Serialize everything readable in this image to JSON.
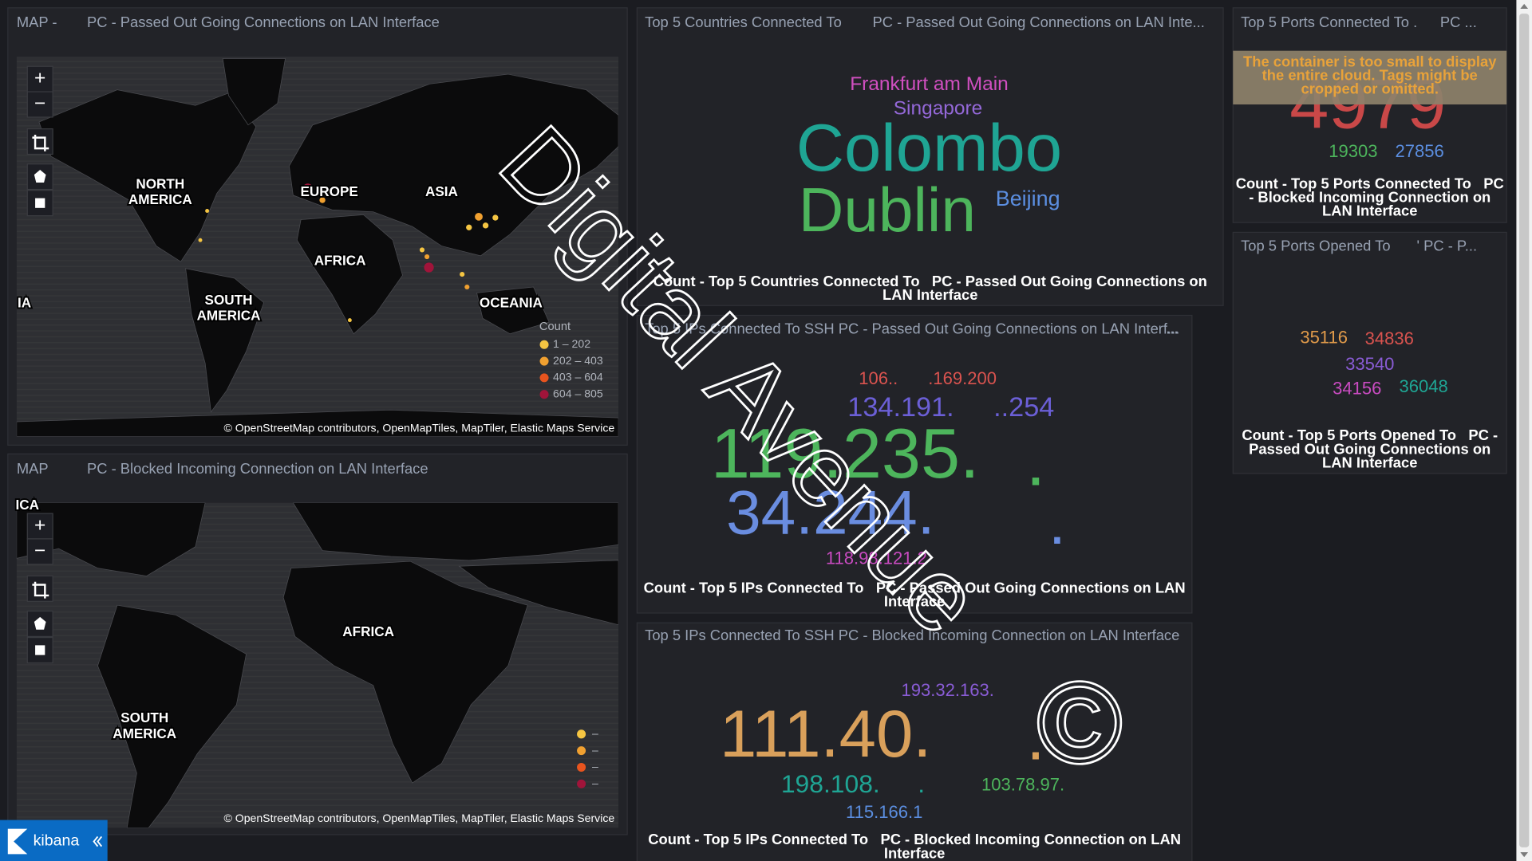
{
  "map_passed": {
    "title": [
      "MAP -",
      "PC - Passed Out Going Connections on LAN Interface"
    ],
    "labels": [
      "NORTH AMERICA",
      "EUROPE",
      "ASIA",
      "AFRICA",
      "SOUTH AMERICA",
      "OCEANIA",
      "IA"
    ],
    "legend_title": "Count",
    "legend": [
      "1 – 202",
      "202 – 403",
      "403 – 604",
      "604 – 805"
    ],
    "attribution": "© OpenStreetMap contributors, OpenMapTiles, MapTiler, Elastic Maps Service"
  },
  "map_blocked": {
    "title": [
      "MAP",
      "PC - Blocked Incoming Connection on LAN Interface"
    ],
    "labels": [
      "ICA",
      "AFRICA",
      "SOUTH AMERICA"
    ],
    "legend": [
      "–",
      "–",
      "–",
      "–"
    ],
    "attribution": "© OpenStreetMap contributors, OpenMapTiles, MapTiler, Elastic Maps Service"
  },
  "controls": {
    "zoom_in": "+",
    "zoom_out": "−"
  },
  "countries": {
    "title": [
      "Top 5 Countries Connected To",
      "PC - Passed Out Going Connections on LAN Inte..."
    ],
    "words": [
      "Frankfurt am Main",
      "Singapore",
      "Colombo",
      "Dublin",
      "Beijing"
    ],
    "footer": [
      "Count - Top 5 Countries Connected To",
      "PC - Passed Out Going Connections on LAN Interface"
    ]
  },
  "ips_passed": {
    "title": "Top 5 IPs Connected To SSH PC - Passed Out Going Connections on LAN Interf...",
    "menu": "...",
    "words": [
      "106..",
      ".169.200",
      "134.191.",
      "..254",
      "119.235.",
      ".",
      "34.244.",
      ".",
      "118.98.121.2"
    ],
    "footer": [
      "Count - Top 5 IPs Connected To",
      "PC - Passed Out Going Connections on LAN Interface"
    ]
  },
  "ips_blocked": {
    "title": "Top 5 IPs Connected To SSH PC - Blocked Incoming Connection on LAN Interface",
    "words": [
      "193.32.163.",
      "111.40.",
      ".",
      "198.108.",
      ".",
      "103.78.97.",
      "115.166.1"
    ],
    "footer": [
      "Count - Top 5 IPs Connected To",
      "PC - Blocked Incoming Connection on LAN Interface"
    ]
  },
  "ports_connected": {
    "title": [
      "Top 5 Ports Connected To .",
      "PC ..."
    ],
    "warning": "The container is too small to display the entire cloud. Tags might be cropped or omitted.",
    "words": [
      "4979",
      "19303",
      "27856"
    ],
    "footer": [
      "Count - Top 5 Ports Connected To",
      "PC - Blocked Incoming Connection on LAN Interface"
    ]
  },
  "ports_opened": {
    "title": [
      "Top 5 Ports Opened To",
      "' PC - P..."
    ],
    "words": [
      "35116",
      "34836",
      "33540",
      "34156",
      "36048"
    ],
    "footer": [
      "Count - Top 5 Ports Opened To",
      "PC - Passed Out Going Connections on LAN Interface"
    ]
  },
  "watermark": {
    "text": "Digital Avenue",
    "symbol": "©"
  },
  "brand": "kibana"
}
